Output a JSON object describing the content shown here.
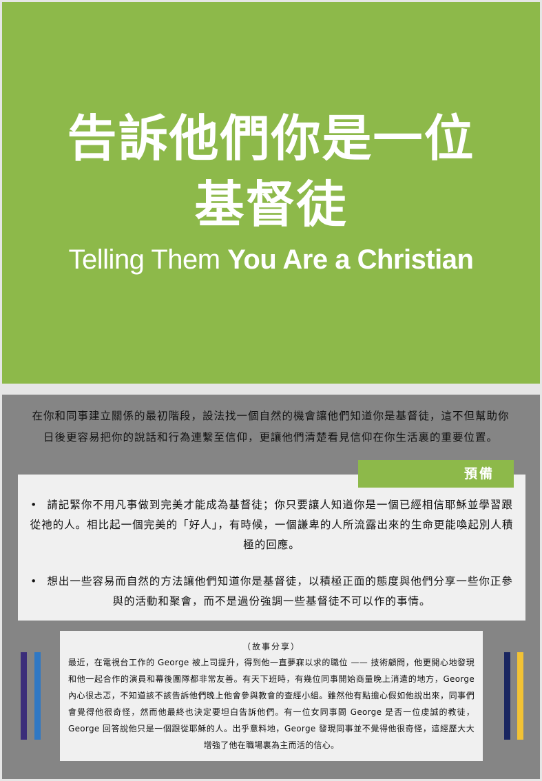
{
  "header": {
    "title_zh_line1": "告訴他們你是一位",
    "title_zh_line2": "基督徒",
    "title_en_regular": "Telling Them",
    "title_en_bold": "You Are a Christian"
  },
  "intro": "在你和同事建立關係的最初階段，設法找一個自然的機會讓他們知道你是基督徒，這不但幫助你日後更容易把你的說話和行為連繫至信仰，更讓他們清楚看見信仰在你生活裏的重要位置。",
  "preparation": {
    "tab_label": "預備",
    "bullet_symbol": "•",
    "items": [
      "請記緊你不用凡事做到完美才能成為基督徒；你只要讓人知道你是一個已經相信耶穌並學習跟從祂的人。相比起一個完美的「好人」，有時候，一個謙卑的人所流露出來的生命更能喚起別人積極的回應。",
      "想出一些容易而自然的方法讓他們知道你是基督徒，以積極正面的態度與他們分享一些你正參與的活動和聚會，而不是過份強調一些基督徒不可以作的事情。"
    ]
  },
  "story": {
    "label": "（故事分享）",
    "text": "最近，在電視台工作的 George 被上司提升，得到他一直夢寐以求的職位 —— 技術顧問，他更開心地發現和他一起合作的演員和幕後團隊都非常友善。有天下班時，有幾位同事開始商量晚上消遣的地方，George 內心很忐忑，不知道該不該告訴他們晚上他會參與教會的查經小組。雖然他有點擔心假如他說出來，同事們會覺得他很奇怪，然而他最終也決定要坦白告訴他們。有一位女同事問 George 是否一位虔誠的教徒，George 回答說他只是一個跟從耶穌的人。出乎意料地，George 發現同事並不覺得他很奇怪，這經歷大大增強了他在職場裏為主而活的信心。"
  },
  "colors": {
    "green": "#8db94a",
    "panel_gray": "#858585",
    "box_light": "#f0f0f0",
    "bar_purple": "#3b2d7a",
    "bar_blue": "#2f78c4",
    "bar_navy": "#1a2660",
    "bar_yellow": "#f2c234"
  }
}
